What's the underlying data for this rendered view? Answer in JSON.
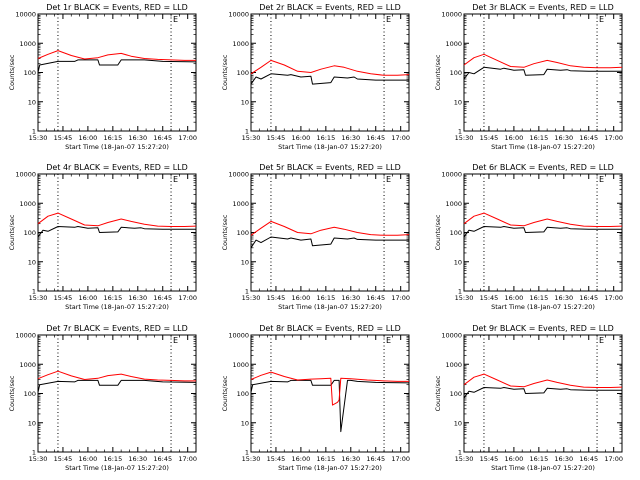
{
  "figure": {
    "ylabel": "Counts/sec",
    "xlabel": "Start Time (18-Jan-07 15:27:20)",
    "x_ticks": [
      "15:30",
      "15:45",
      "16:00",
      "16:15",
      "16:30",
      "16:45",
      "17:00"
    ],
    "y_ticks": [
      "1",
      "10",
      "100",
      "1000",
      "10000"
    ],
    "marker_label": "E",
    "colors": {
      "events": "#000000",
      "lld": "#ff0000",
      "axes": "#000000",
      "background": "#ffffff"
    }
  },
  "chart_data": [
    {
      "type": "line",
      "title": "Det 1r BLACK = Events, RED = LLD",
      "x_unit": "minutes after 15:30",
      "xlim": [
        0,
        95
      ],
      "ylim": [
        1,
        10000
      ],
      "yscale": "log",
      "vlines": [
        12,
        80
      ],
      "marker_x": [
        80
      ],
      "series": [
        {
          "key": "events",
          "x": [
            0,
            1,
            12,
            22,
            24,
            30,
            36,
            37,
            48,
            50,
            58,
            60,
            64,
            75,
            95
          ],
          "values": [
            100,
            180,
            240,
            240,
            270,
            270,
            270,
            180,
            180,
            270,
            270,
            270,
            270,
            240,
            230
          ]
        },
        {
          "key": "lld",
          "x": [
            0,
            6,
            12,
            20,
            28,
            36,
            42,
            50,
            56,
            64,
            72,
            80,
            88,
            95
          ],
          "values": [
            300,
            420,
            560,
            380,
            290,
            320,
            400,
            450,
            360,
            300,
            280,
            270,
            260,
            260
          ]
        }
      ]
    },
    {
      "type": "line",
      "title": "Det 2r BLACK = Events, RED = LLD",
      "x_unit": "minutes after 15:30",
      "xlim": [
        0,
        95
      ],
      "ylim": [
        1,
        10000
      ],
      "yscale": "log",
      "vlines": [
        12,
        80
      ],
      "marker_x": [
        80
      ],
      "series": [
        {
          "key": "events",
          "x": [
            0,
            3,
            6,
            12,
            22,
            24,
            30,
            36,
            37,
            48,
            50,
            58,
            62,
            64,
            75,
            95
          ],
          "values": [
            40,
            70,
            60,
            90,
            80,
            85,
            70,
            75,
            40,
            45,
            70,
            65,
            70,
            60,
            55,
            55
          ]
        },
        {
          "key": "lld",
          "x": [
            0,
            6,
            12,
            20,
            28,
            36,
            42,
            50,
            56,
            64,
            72,
            80,
            88,
            95
          ],
          "values": [
            90,
            150,
            260,
            180,
            110,
            100,
            130,
            170,
            150,
            110,
            90,
            80,
            80,
            85
          ]
        }
      ]
    },
    {
      "type": "line",
      "title": "Det 3r BLACK = Events, RED = LLD",
      "x_unit": "minutes after 15:30",
      "xlim": [
        0,
        95
      ],
      "ylim": [
        1,
        10000
      ],
      "yscale": "log",
      "vlines": [
        12,
        80
      ],
      "marker_x": [
        80
      ],
      "series": [
        {
          "key": "events",
          "x": [
            0,
            3,
            6,
            12,
            22,
            24,
            30,
            36,
            37,
            48,
            50,
            58,
            62,
            64,
            75,
            95
          ],
          "values": [
            60,
            100,
            90,
            150,
            130,
            140,
            120,
            125,
            80,
            85,
            130,
            120,
            125,
            115,
            110,
            110
          ]
        },
        {
          "key": "lld",
          "x": [
            0,
            6,
            12,
            20,
            28,
            36,
            42,
            50,
            56,
            64,
            72,
            80,
            88,
            95
          ],
          "values": [
            180,
            320,
            420,
            260,
            160,
            150,
            200,
            260,
            220,
            170,
            150,
            145,
            145,
            150
          ]
        }
      ]
    },
    {
      "type": "line",
      "title": "Det 4r BLACK = Events, RED = LLD",
      "x_unit": "minutes after 15:30",
      "xlim": [
        0,
        95
      ],
      "ylim": [
        1,
        10000
      ],
      "yscale": "log",
      "vlines": [
        12,
        80
      ],
      "marker_x": [
        80
      ],
      "series": [
        {
          "key": "events",
          "x": [
            0,
            3,
            6,
            12,
            22,
            24,
            30,
            36,
            37,
            48,
            50,
            58,
            62,
            64,
            75,
            95
          ],
          "values": [
            70,
            120,
            110,
            160,
            150,
            160,
            140,
            145,
            100,
            105,
            150,
            140,
            145,
            135,
            130,
            130
          ]
        },
        {
          "key": "lld",
          "x": [
            0,
            6,
            12,
            20,
            28,
            36,
            42,
            50,
            56,
            64,
            72,
            80,
            88,
            95
          ],
          "values": [
            200,
            360,
            460,
            290,
            180,
            170,
            220,
            290,
            240,
            190,
            165,
            160,
            160,
            165
          ]
        }
      ]
    },
    {
      "type": "line",
      "title": "Det 5r BLACK = Events, RED = LLD",
      "x_unit": "minutes after 15:30",
      "xlim": [
        0,
        95
      ],
      "ylim": [
        1,
        10000
      ],
      "yscale": "log",
      "vlines": [
        12,
        80
      ],
      "marker_x": [
        80
      ],
      "series": [
        {
          "key": "events",
          "x": [
            0,
            3,
            6,
            12,
            22,
            24,
            30,
            36,
            37,
            48,
            50,
            58,
            62,
            64,
            75,
            95
          ],
          "values": [
            30,
            55,
            45,
            70,
            60,
            65,
            55,
            60,
            35,
            40,
            65,
            60,
            65,
            58,
            55,
            55
          ]
        },
        {
          "key": "lld",
          "x": [
            0,
            6,
            12,
            20,
            28,
            36,
            42,
            50,
            56,
            64,
            72,
            80,
            88,
            95
          ],
          "values": [
            80,
            140,
            240,
            160,
            100,
            90,
            120,
            150,
            130,
            100,
            85,
            80,
            80,
            85
          ]
        }
      ]
    },
    {
      "type": "line",
      "title": "Det 6r BLACK = Events, RED = LLD",
      "x_unit": "minutes after 15:30",
      "xlim": [
        0,
        95
      ],
      "ylim": [
        1,
        10000
      ],
      "yscale": "log",
      "vlines": [
        12,
        80
      ],
      "marker_x": [
        80
      ],
      "series": [
        {
          "key": "events",
          "x": [
            0,
            3,
            6,
            12,
            22,
            24,
            30,
            36,
            37,
            48,
            50,
            58,
            62,
            64,
            75,
            95
          ],
          "values": [
            70,
            120,
            110,
            160,
            150,
            160,
            140,
            145,
            100,
            105,
            150,
            140,
            145,
            135,
            130,
            130
          ]
        },
        {
          "key": "lld",
          "x": [
            0,
            6,
            12,
            20,
            28,
            36,
            42,
            50,
            56,
            64,
            72,
            80,
            88,
            95
          ],
          "values": [
            200,
            360,
            460,
            290,
            180,
            170,
            220,
            290,
            240,
            190,
            165,
            160,
            160,
            165
          ]
        }
      ]
    },
    {
      "type": "line",
      "title": "Det 7r BLACK = Events, RED = LLD",
      "x_unit": "minutes after 15:30",
      "xlim": [
        0,
        95
      ],
      "ylim": [
        1,
        10000
      ],
      "yscale": "log",
      "vlines": [
        12,
        80
      ],
      "marker_x": [
        80
      ],
      "series": [
        {
          "key": "events",
          "x": [
            0,
            1,
            12,
            22,
            24,
            30,
            36,
            37,
            48,
            50,
            58,
            60,
            64,
            75,
            95
          ],
          "values": [
            110,
            200,
            260,
            250,
            280,
            280,
            280,
            190,
            190,
            280,
            280,
            280,
            280,
            250,
            240
          ]
        },
        {
          "key": "lld",
          "x": [
            0,
            6,
            12,
            20,
            28,
            36,
            42,
            50,
            56,
            64,
            72,
            80,
            88,
            95
          ],
          "values": [
            320,
            440,
            580,
            400,
            300,
            330,
            410,
            460,
            380,
            310,
            290,
            280,
            270,
            270
          ]
        }
      ]
    },
    {
      "type": "line",
      "title": "Det 8r BLACK = Events, RED = LLD",
      "x_unit": "minutes after 15:30",
      "xlim": [
        0,
        95
      ],
      "ylim": [
        1,
        10000
      ],
      "yscale": "log",
      "vlines": [
        12,
        80
      ],
      "marker_x": [
        80
      ],
      "series": [
        {
          "key": "events",
          "x": [
            0,
            1,
            12,
            22,
            24,
            30,
            36,
            37,
            48,
            50,
            53,
            54,
            58,
            60,
            64,
            75,
            95
          ],
          "values": [
            110,
            200,
            260,
            250,
            280,
            280,
            280,
            190,
            190,
            280,
            280,
            5,
            280,
            280,
            260,
            240,
            230
          ]
        },
        {
          "key": "lld",
          "x": [
            0,
            6,
            12,
            20,
            28,
            36,
            42,
            48,
            49,
            52,
            53,
            54,
            60,
            70,
            80,
            88,
            95
          ],
          "values": [
            300,
            420,
            540,
            380,
            290,
            310,
            320,
            330,
            40,
            50,
            60,
            330,
            320,
            290,
            270,
            260,
            260
          ]
        }
      ]
    },
    {
      "type": "line",
      "title": "Det 9r BLACK = Events, RED = LLD",
      "x_unit": "minutes after 15:30",
      "xlim": [
        0,
        95
      ],
      "ylim": [
        1,
        10000
      ],
      "yscale": "log",
      "vlines": [
        12,
        80
      ],
      "marker_x": [
        80
      ],
      "series": [
        {
          "key": "events",
          "x": [
            0,
            3,
            6,
            12,
            22,
            24,
            30,
            36,
            37,
            48,
            50,
            58,
            62,
            64,
            75,
            95
          ],
          "values": [
            70,
            120,
            110,
            160,
            150,
            160,
            140,
            145,
            100,
            105,
            150,
            140,
            145,
            135,
            130,
            130
          ]
        },
        {
          "key": "lld",
          "x": [
            0,
            6,
            12,
            20,
            28,
            36,
            42,
            50,
            56,
            64,
            72,
            80,
            88,
            95
          ],
          "values": [
            200,
            360,
            460,
            290,
            180,
            170,
            220,
            290,
            240,
            190,
            165,
            160,
            160,
            165
          ]
        }
      ]
    }
  ]
}
